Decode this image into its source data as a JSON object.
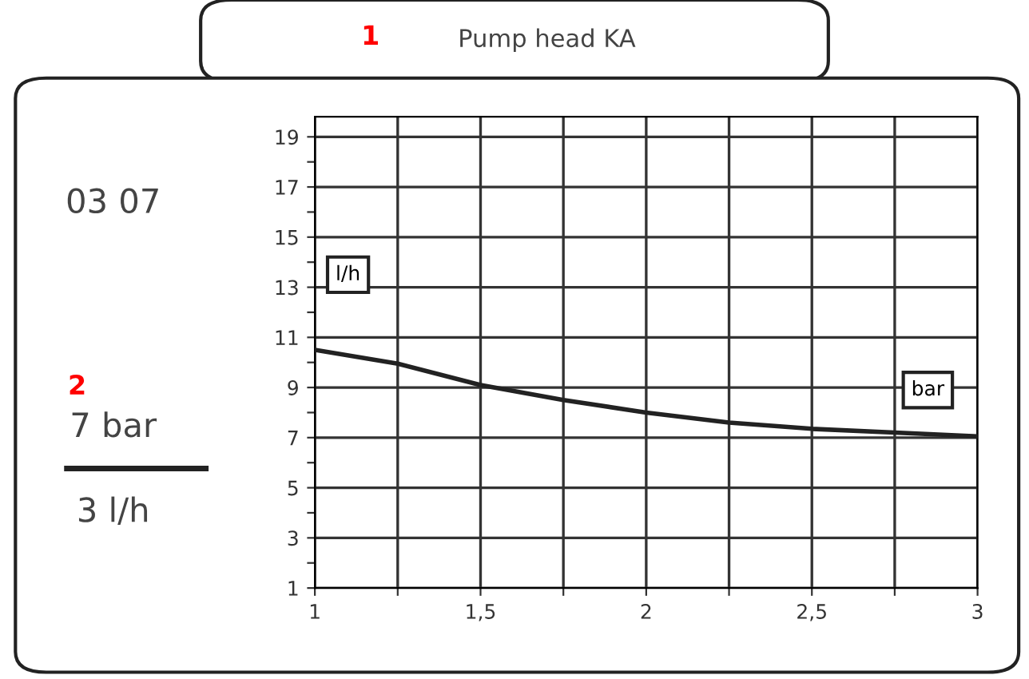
{
  "chart_data": {
    "type": "line",
    "title": "Pump head KA",
    "x": [
      1,
      1.25,
      1.5,
      1.75,
      2,
      2.25,
      2.5,
      2.75,
      3
    ],
    "series": [
      {
        "color": "#222222",
        "values": [
          10.5,
          9.95,
          9.1,
          8.5,
          8.0,
          7.6,
          7.35,
          7.2,
          7.05
        ]
      }
    ],
    "xlim": [
      1,
      3
    ],
    "xticks": [
      1,
      {
        "value": 1.25,
        "label": null
      },
      {
        "value": 1.5,
        "label": "1,5"
      },
      {
        "value": 1.75,
        "label": null
      },
      2,
      {
        "value": 2.25,
        "label": null
      },
      {
        "value": 2.5,
        "label": "2,5"
      },
      {
        "value": 2.75,
        "label": null
      },
      3
    ],
    "ylim": [
      1,
      19.8
    ],
    "yticks": [
      1,
      {
        "value": 2,
        "label": null
      },
      3,
      {
        "value": 4,
        "label": null
      },
      5,
      {
        "value": 6,
        "label": null
      },
      7,
      {
        "value": 8,
        "label": null
      },
      9,
      {
        "value": 10,
        "label": null
      },
      11,
      {
        "value": 12,
        "label": null
      },
      13,
      {
        "value": 14,
        "label": null
      },
      15,
      {
        "value": 16,
        "label": null
      },
      17,
      {
        "value": 18,
        "label": null
      },
      19
    ],
    "grid": true,
    "marker": "none",
    "line_style": "solid",
    "annotations": [
      {
        "text": "l/h",
        "x": 1.1,
        "y": 13.5
      },
      {
        "text": "bar",
        "x": 2.85,
        "y": 8.9
      },
      "03 07",
      "7 bar",
      "3 l/h",
      "1",
      "2"
    ]
  }
}
